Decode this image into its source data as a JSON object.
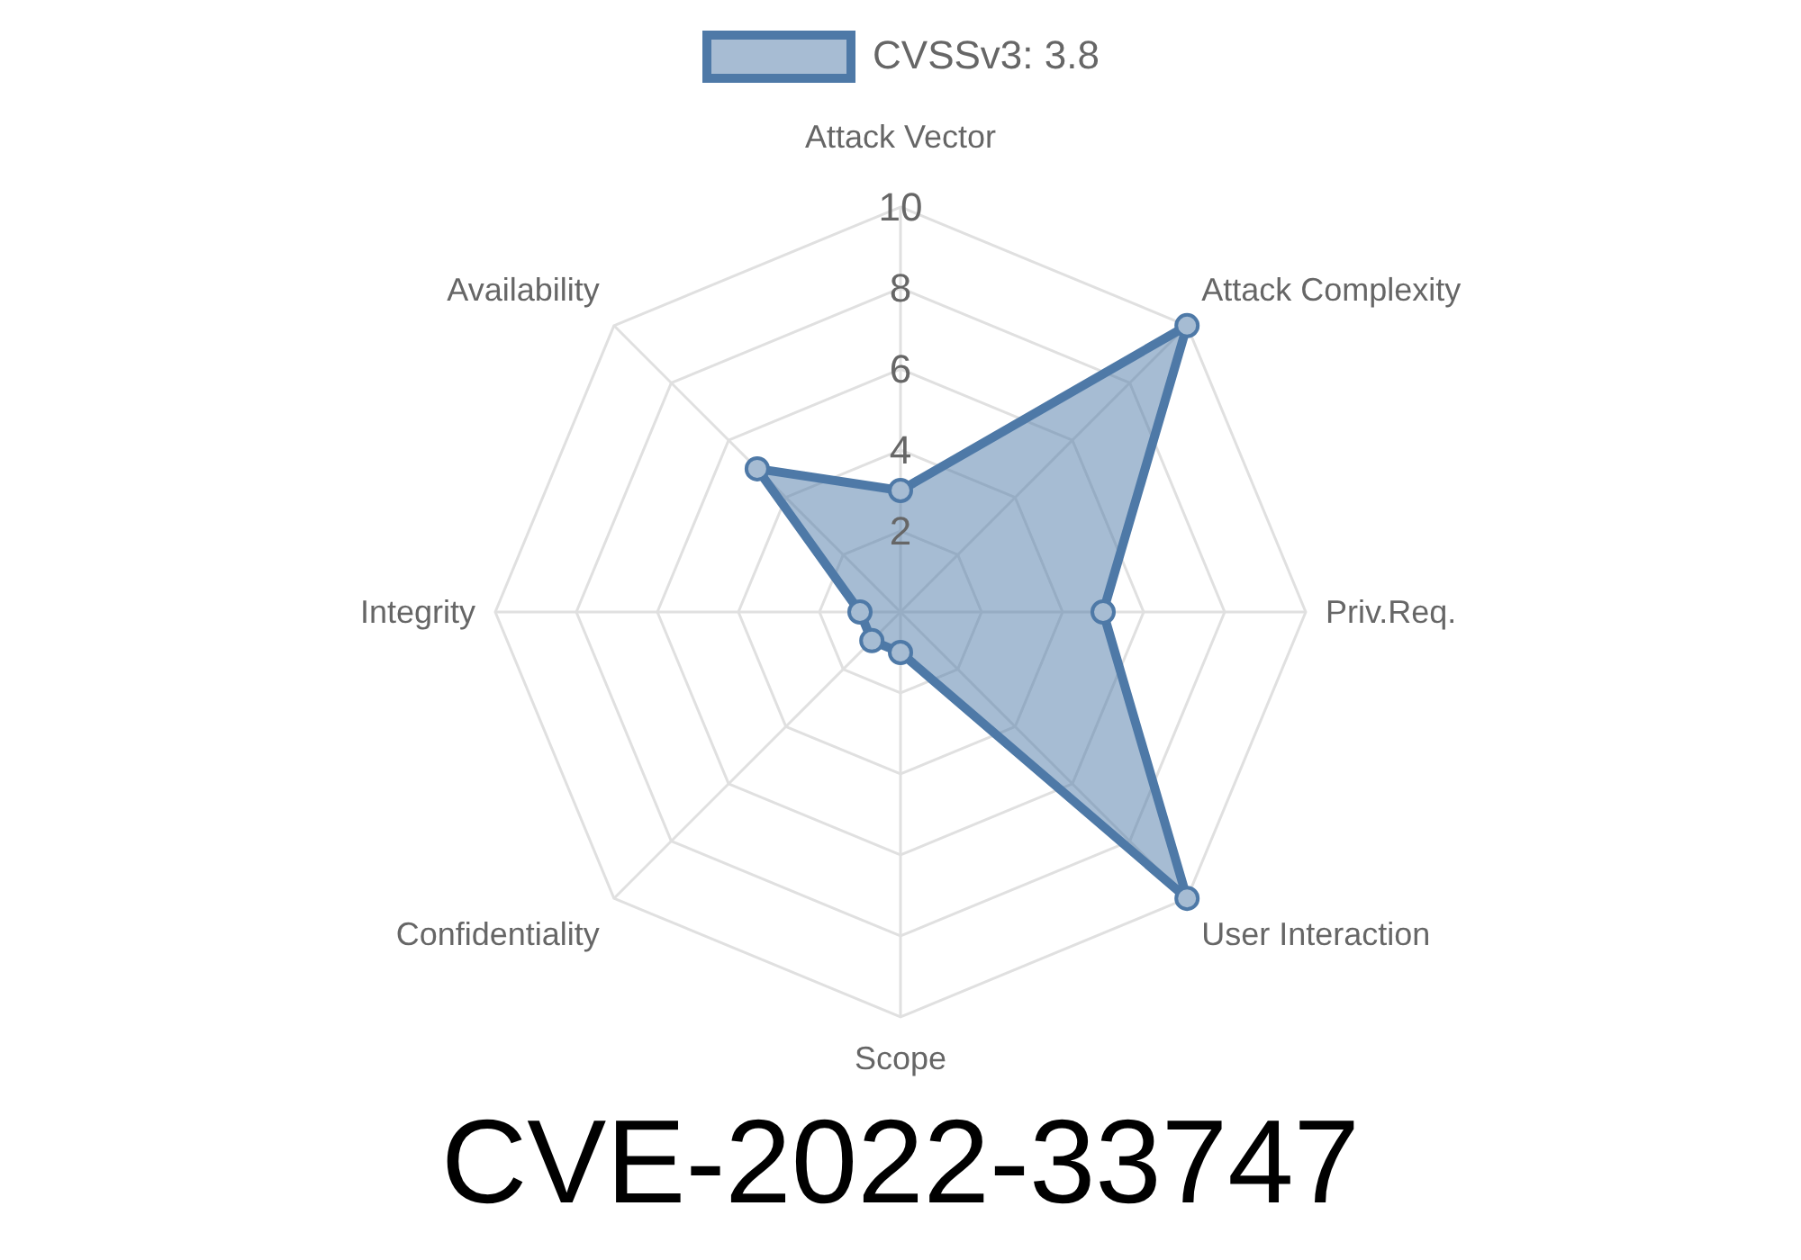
{
  "chart_data": {
    "type": "radar",
    "title": "CVE-2022-33747",
    "categories": [
      "Attack Vector",
      "Attack Complexity",
      "Priv.Req.",
      "User Interaction",
      "Scope",
      "Confidentiality",
      "Integrity",
      "Availability"
    ],
    "series": [
      {
        "name": "CVSSv3: 3.8",
        "color": "#4e79a7",
        "values": [
          3,
          10,
          5,
          10,
          1,
          1,
          1,
          5
        ]
      }
    ],
    "ylim": [
      0,
      10
    ],
    "yticks": [
      2,
      4,
      6,
      8,
      10
    ],
    "grid": true,
    "legend": "top",
    "marker": "circle"
  }
}
